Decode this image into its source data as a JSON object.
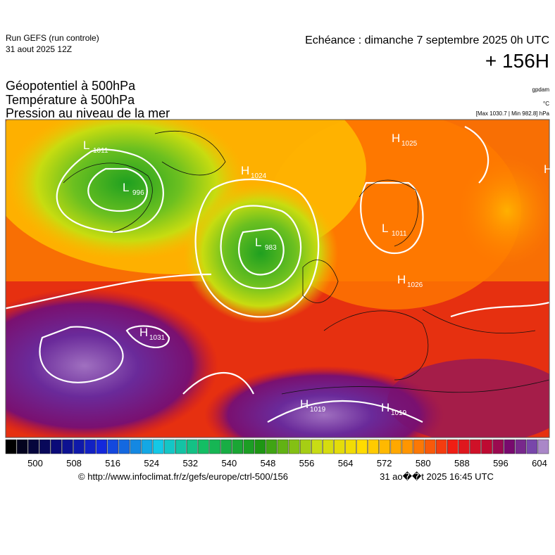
{
  "header": {
    "run": "Run GEFS (run controle)",
    "date": "31 aout 2025 12Z",
    "echeance": "Echéance : dimanche 7 septembre 2025 0h UTC",
    "lead": "+ 156H"
  },
  "titles": [
    "Géopotentiel à 500hPa",
    "Température à 500hPa",
    "Pression au niveau de la mer"
  ],
  "units": {
    "geopotential": "gpdam",
    "temperature": "°C",
    "pressure": "[Max 1030.7 | Min 982.8] hPa"
  },
  "centers": [
    {
      "label": "L",
      "value": "1011"
    },
    {
      "label": "L",
      "value": "996"
    },
    {
      "label": "H",
      "value": "1024"
    },
    {
      "label": "L",
      "value": "983"
    },
    {
      "label": "H",
      "value": "1025"
    },
    {
      "label": "L",
      "value": "1011"
    },
    {
      "label": "H",
      "value": "1026"
    },
    {
      "label": "H",
      "value": "1031"
    },
    {
      "label": "H",
      "value": "1019"
    },
    {
      "label": "H",
      "value": "1019"
    },
    {
      "label": "H"
    }
  ],
  "colorbar": {
    "ticks": [
      500,
      508,
      516,
      524,
      532,
      540,
      548,
      556,
      564,
      572,
      580,
      588,
      596,
      604
    ]
  },
  "footer": {
    "url": "© http://www.infoclimat.fr/z/gefs/europe/ctrl-500/156",
    "stamp": "31 ao��t 2025 16:45 UTC"
  }
}
